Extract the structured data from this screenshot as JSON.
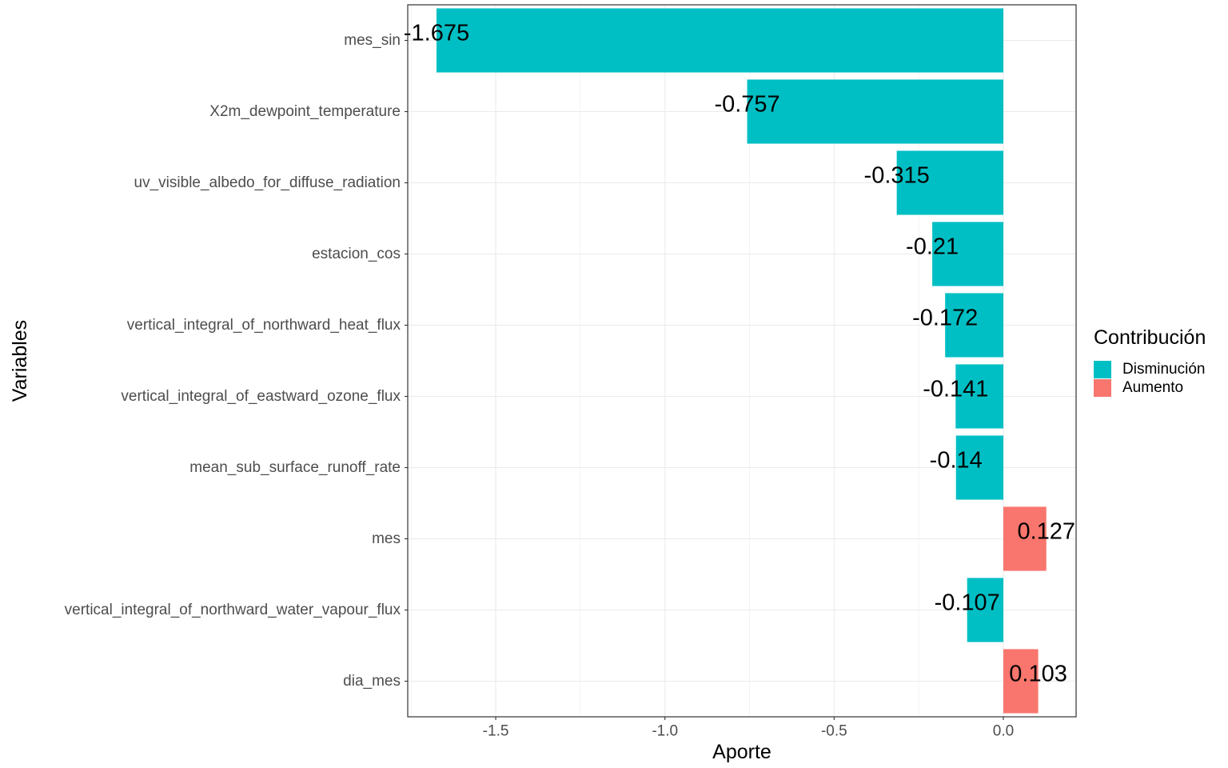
{
  "chart_data": {
    "type": "bar",
    "orientation": "horizontal",
    "xlabel": "Aporte",
    "ylabel": "Variables",
    "xlim": [
      -1.76,
      0.215
    ],
    "xticks": [
      -1.5,
      -1.0,
      -0.5,
      0.0
    ],
    "xtick_labels": [
      "-1.5",
      "-1.0",
      "-0.5",
      "0.0"
    ],
    "grid": true,
    "categories": [
      "mes_sin",
      "X2m_dewpoint_temperature",
      "uv_visible_albedo_for_diffuse_radiation",
      "estacion_cos",
      "vertical_integral_of_northward_heat_flux",
      "vertical_integral_of_eastward_ozone_flux",
      "mean_sub_surface_runoff_rate",
      "mes",
      "vertical_integral_of_northward_water_vapour_flux",
      "dia_mes"
    ],
    "values": [
      -1.675,
      -0.757,
      -0.315,
      -0.21,
      -0.172,
      -0.141,
      -0.14,
      0.127,
      -0.107,
      0.103
    ],
    "data_labels": [
      "-1.675",
      "-0.757",
      "-0.315",
      "-0.21",
      "-0.172",
      "-0.141",
      "-0.14",
      "0.127",
      "-0.107",
      "0.103"
    ],
    "groups": [
      "Disminución",
      "Disminución",
      "Disminución",
      "Disminución",
      "Disminución",
      "Disminución",
      "Disminución",
      "Aumento",
      "Disminución",
      "Aumento"
    ],
    "legend": {
      "title": "Contribución",
      "position": "right",
      "entries": [
        {
          "name": "Disminución",
          "color": "#00BFC4"
        },
        {
          "name": "Aumento",
          "color": "#F8766D"
        }
      ]
    },
    "colors": {
      "Disminución": "#00BFC4",
      "Aumento": "#F8766D",
      "grid": "#EBEBEB",
      "panel_border": "#333333",
      "tick_text": "#4D4D4D"
    }
  }
}
